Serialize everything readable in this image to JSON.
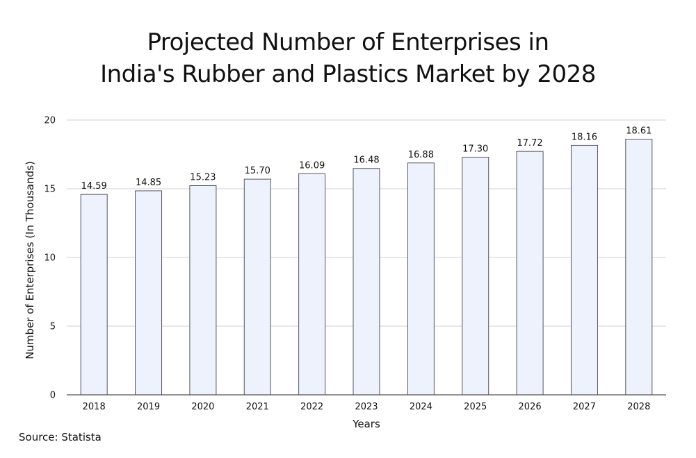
{
  "title_lines": [
    "Projected Number of Enterprises in",
    "India's Rubber and Plastics Market by 2028"
  ],
  "source": "Source: Statista",
  "chart_data": {
    "type": "bar",
    "title": "Projected Number of Enterprises in India's Rubber and Plastics Market by 2028",
    "xlabel": "Years",
    "ylabel": "Number of Enterprises (In Thousands)",
    "categories": [
      "2018",
      "2019",
      "2020",
      "2021",
      "2022",
      "2023",
      "2024",
      "2025",
      "2026",
      "2027",
      "2028"
    ],
    "values": [
      14.59,
      14.85,
      15.23,
      15.7,
      16.09,
      16.48,
      16.88,
      17.3,
      17.72,
      18.16,
      18.61
    ],
    "value_labels": [
      "14.59",
      "14.85",
      "15.23",
      "15.70",
      "16.09",
      "16.48",
      "16.88",
      "17.30",
      "17.72",
      "18.16",
      "18.61"
    ],
    "ylim": [
      0,
      20
    ],
    "yticks": [
      0,
      5,
      10,
      15,
      20
    ],
    "grid": true,
    "colors": {
      "bar_fill": "#eef2fd",
      "bar_stroke": "#55555f",
      "grid": "#d0d0d0",
      "axis": "#555555",
      "text": "#111111"
    }
  }
}
